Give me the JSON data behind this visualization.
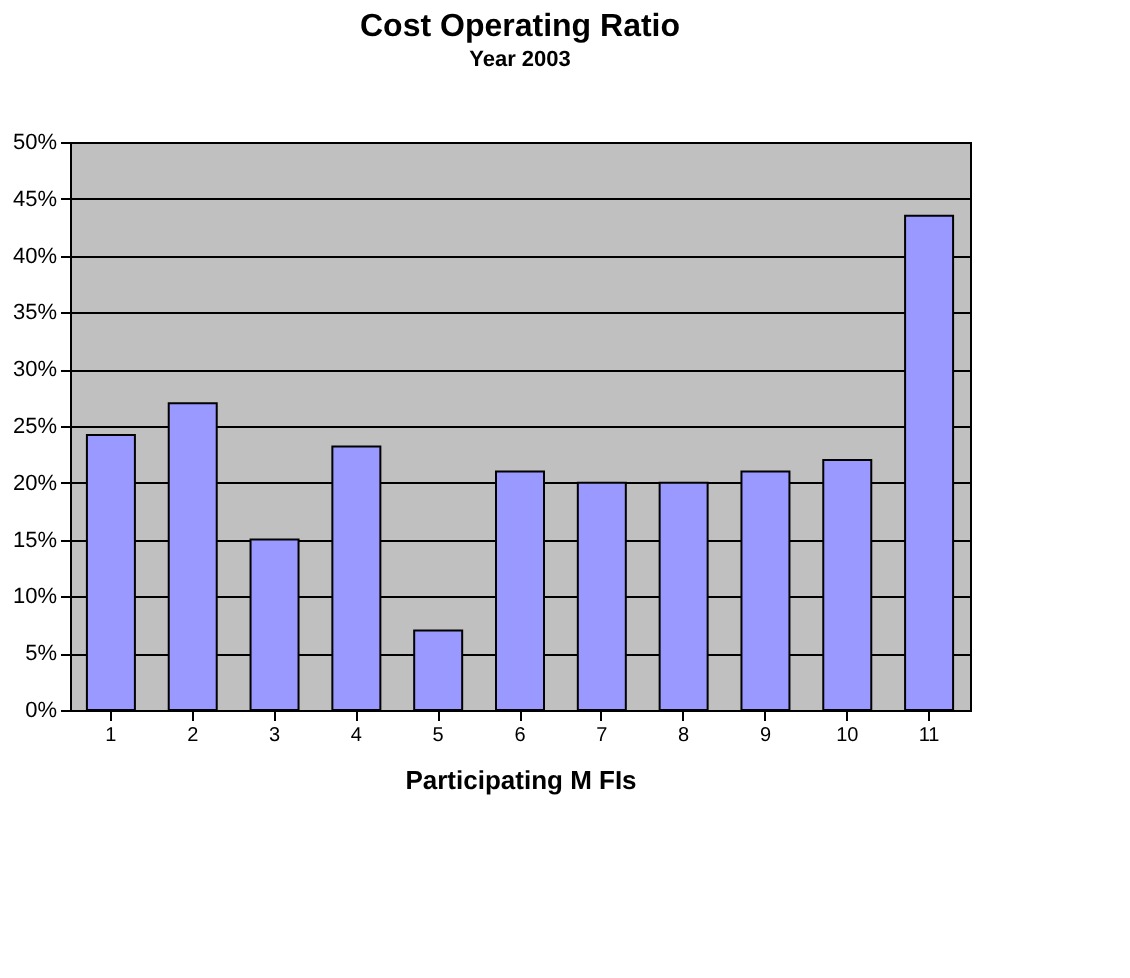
{
  "chart_data": {
    "type": "bar",
    "title": "Cost Operating Ratio",
    "subtitle": "Year 2003",
    "xlabel": "Participating M FIs",
    "categories": [
      "1",
      "2",
      "3",
      "4",
      "5",
      "6",
      "7",
      "8",
      "9",
      "10",
      "11"
    ],
    "values": [
      24.2,
      27,
      15,
      23.2,
      7,
      21,
      20,
      20,
      21,
      22,
      43.5
    ],
    "color": "#9999ff",
    "ylim": [
      0,
      50
    ],
    "yticks": [
      {
        "value": 0,
        "label": "0%"
      },
      {
        "value": 5,
        "label": "5%"
      },
      {
        "value": 10,
        "label": "10%"
      },
      {
        "value": 15,
        "label": "15%"
      },
      {
        "value": 20,
        "label": "20%"
      },
      {
        "value": 25,
        "label": "25%"
      },
      {
        "value": 30,
        "label": "30%"
      },
      {
        "value": 35,
        "label": "35%"
      },
      {
        "value": 40,
        "label": "40%"
      },
      {
        "value": 45,
        "label": "45%"
      },
      {
        "value": 50,
        "label": "50%"
      }
    ],
    "grid": "y"
  }
}
